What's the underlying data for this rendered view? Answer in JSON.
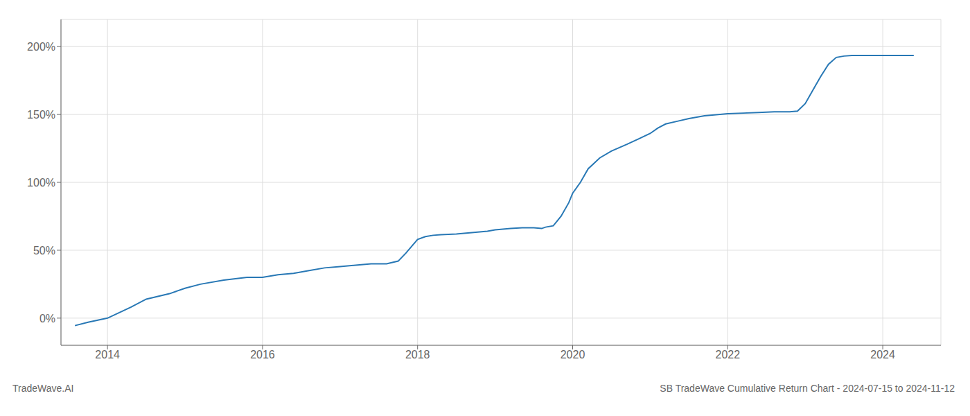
{
  "chart_data": {
    "type": "line",
    "title": "SB TradeWave Cumulative Return Chart - 2024-07-15 to 2024-11-12",
    "annotations": [
      "TradeWave.AI"
    ],
    "color": "#2878b5",
    "grid": true,
    "xlim": [
      2013.4,
      2024.75
    ],
    "xticks": [
      2014,
      2016,
      2018,
      2020,
      2022,
      2024
    ],
    "ylim": [
      -20,
      220
    ],
    "yticks": [
      {
        "value": 0,
        "label": "0%"
      },
      {
        "value": 50,
        "label": "50%"
      },
      {
        "value": 100,
        "label": "100%"
      },
      {
        "value": 150,
        "label": "150%"
      },
      {
        "value": 200,
        "label": "200%"
      }
    ],
    "x": [
      2013.58,
      2013.75,
      2014.0,
      2014.3,
      2014.5,
      2014.8,
      2015.0,
      2015.2,
      2015.5,
      2015.8,
      2016.0,
      2016.2,
      2016.4,
      2016.6,
      2016.8,
      2017.0,
      2017.2,
      2017.4,
      2017.6,
      2017.75,
      2017.85,
      2018.0,
      2018.1,
      2018.2,
      2018.3,
      2018.5,
      2018.7,
      2018.9,
      2019.0,
      2019.1,
      2019.2,
      2019.35,
      2019.5,
      2019.6,
      2019.65,
      2019.75,
      2019.85,
      2019.95,
      2020.0,
      2020.1,
      2020.2,
      2020.35,
      2020.5,
      2020.7,
      2020.85,
      2021.0,
      2021.1,
      2021.2,
      2021.35,
      2021.5,
      2021.7,
      2021.9,
      2022.0,
      2022.2,
      2022.4,
      2022.6,
      2022.8,
      2022.9,
      2023.0,
      2023.1,
      2023.2,
      2023.3,
      2023.4,
      2023.5,
      2023.6,
      2023.7,
      2023.8,
      2024.0,
      2024.2,
      2024.4
    ],
    "values": [
      -5.5,
      -3.0,
      0.0,
      8.0,
      14.0,
      18.0,
      22.0,
      25.0,
      28.0,
      30.0,
      30.0,
      32.0,
      33.0,
      35.0,
      37.0,
      38.0,
      39.0,
      40.0,
      40.0,
      42.0,
      48.0,
      58.0,
      60.0,
      61.0,
      61.5,
      62.0,
      63.0,
      64.0,
      65.0,
      65.5,
      66.0,
      66.5,
      66.5,
      66.0,
      67.0,
      68.0,
      75.0,
      85.0,
      92.0,
      100.0,
      110.0,
      118.0,
      123.0,
      128.0,
      132.0,
      136.0,
      140.0,
      143.0,
      145.0,
      147.0,
      149.0,
      150.0,
      150.5,
      151.0,
      151.5,
      152.0,
      152.0,
      152.5,
      158.0,
      168.0,
      178.0,
      187.0,
      192.0,
      193.0,
      193.5,
      193.5,
      193.5,
      193.5,
      193.5,
      193.5
    ]
  }
}
